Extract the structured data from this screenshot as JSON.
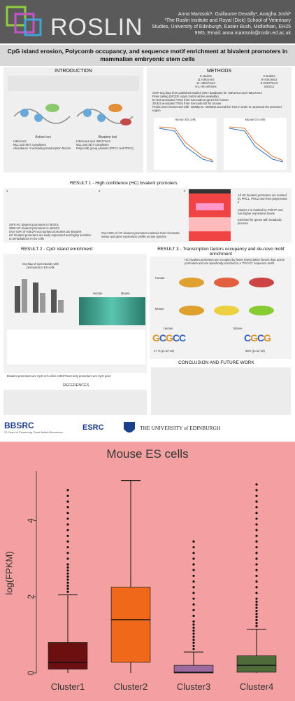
{
  "header": {
    "logo": "ROSLIN",
    "authors": "Anna Mantsoki¹, Guillaume Devailly¹, Anagha Joshi¹",
    "affiliation": "¹The Roslin Institute and Royal (Dick) School of Veterinary Studies, University of Edinburgh, Easter Bush, Midlothian, EH25 9RG, Email: anna.mantsoki@roslin.ed.ac.uk"
  },
  "title": "CpG island erosion, Polycomb occupancy, and sequence motif enrichment at bivalent promoters in mammalian embryonic stem cells",
  "intro": {
    "heading": "INTRODUCTION",
    "active_label": "Active loci",
    "active_items": [
      "H3K4me3",
      "MLL and SET complexes",
      "Abundance of activating transcription factors"
    ],
    "bivalent_label": "Bivalent loci",
    "bivalent_items": [
      "H3K4me3 and H3K27me3",
      "MLL and SET complexes",
      "Polycomb group proteins (PRC1 and PRC2)"
    ]
  },
  "methods": {
    "heading": "METHODS",
    "human": [
      "6 studies",
      "11 H3K4me3",
      "11 H3K27me3",
      "H1, H9 cell lines"
    ],
    "mouse": [
      "6 studies",
      "8 H3K4me3",
      "8 H3K27me3",
      "mESCs"
    ],
    "bullets": [
      "ChIP-seq data from published studies (SRA database) for H3K4me3 and H3K27me3",
      "Peak calling (SICER, input control where available)",
      "57,818 annotated TSSs from Gencode19 genes for human",
      "38,922 annotated TSSs from Gencode M2 for mouse",
      "Peaks were intersected with -1000bp to +2000bp around the TSS in order to represent the promoter region"
    ],
    "chart_labels": [
      "Human ES cells",
      "Mouse ES cells"
    ]
  },
  "result1": {
    "heading": "RESULT 1 - High confidence (HC) bivalent promoters",
    "bullets_left": [
      "4979 HC bivalent promoters in hESCs",
      "3659 HC bivalent promoters in mESCs",
      "Over 60% of H3K27me3 marked promoters are bivalent",
      "HC bivalent promoters are lowly expressed and highly sensitive to perturbations in ES cells"
    ],
    "bullet_mid": "Over 50% of HC bivalent promoters maintain their chromatin status and gene expression profile across species",
    "bullets_right": [
      "All HC bivalent promoters are marked by PRC1, PRC2 and RNA polymerase II",
      "Cluster 2 is marked by PolII7P and has higher expression levels",
      "Enriched for genes with metabolic process"
    ],
    "panel_labels": [
      "1",
      "2",
      "3"
    ]
  },
  "result2": {
    "heading": "RESULT 2 - CpG island enrichment",
    "bullet": "Bivalent promoters are CpG rich while H3K27me3-only promoters are CpG poor",
    "chart_caption": "Overlap of CpG islands with promoters in ES cells",
    "species": [
      "Human",
      "Mouse"
    ]
  },
  "result3": {
    "heading": "RESULT 3 - Transcription factors occupancy and de-novo motif enrichment",
    "bullet": "HC bivalent promoters are occupied by fewer transcription factors than active promoters and are specifically enriched in a 'TCCCC' sequence motif",
    "species": [
      "Human",
      "Mouse"
    ],
    "human_pct": "47 % (p=1e-16)",
    "mouse_pct": "55% (p=1e-16)"
  },
  "conclusion": {
    "heading": "CONCLUSION AND FUTURE WORK"
  },
  "references": {
    "heading": "REFERENCES"
  },
  "footer": {
    "logos": [
      "BBSRC",
      "ESRC",
      "THE UNIVERSITY of EDINBURGH"
    ],
    "bbsrc_tag": "20 Years of Pioneering Great British Bioscience"
  },
  "chart_data": {
    "type": "box",
    "title": "Mouse ES cells",
    "ylabel": "log(FPKM)",
    "xlabel": "",
    "categories": [
      "Cluster1",
      "Cluster2",
      "Cluster3",
      "Cluster4"
    ],
    "ylim": [
      0,
      5.3
    ],
    "yticks": [
      0,
      2,
      4
    ],
    "colors": [
      "#6b0f10",
      "#f0691a",
      "#9e6aa0",
      "#4f6b3a"
    ],
    "boxes": [
      {
        "name": "Cluster1",
        "q1": 0.1,
        "median": 0.28,
        "q3": 0.8,
        "whisker_low": 0,
        "whisker_high": 2.05,
        "outlier_max": 4.9
      },
      {
        "name": "Cluster2",
        "q1": 0.28,
        "median": 1.4,
        "q3": 2.25,
        "whisker_low": 0,
        "whisker_high": 5.05,
        "outlier_max": 5.05
      },
      {
        "name": "Cluster3",
        "q1": 0.0,
        "median": 0.02,
        "q3": 0.2,
        "whisker_low": 0,
        "whisker_high": 0.55,
        "outlier_max": 3.5
      },
      {
        "name": "Cluster4",
        "q1": 0.02,
        "median": 0.2,
        "q3": 0.45,
        "whisker_low": 0,
        "whisker_high": 1.15,
        "outlier_max": 4.95
      }
    ]
  }
}
